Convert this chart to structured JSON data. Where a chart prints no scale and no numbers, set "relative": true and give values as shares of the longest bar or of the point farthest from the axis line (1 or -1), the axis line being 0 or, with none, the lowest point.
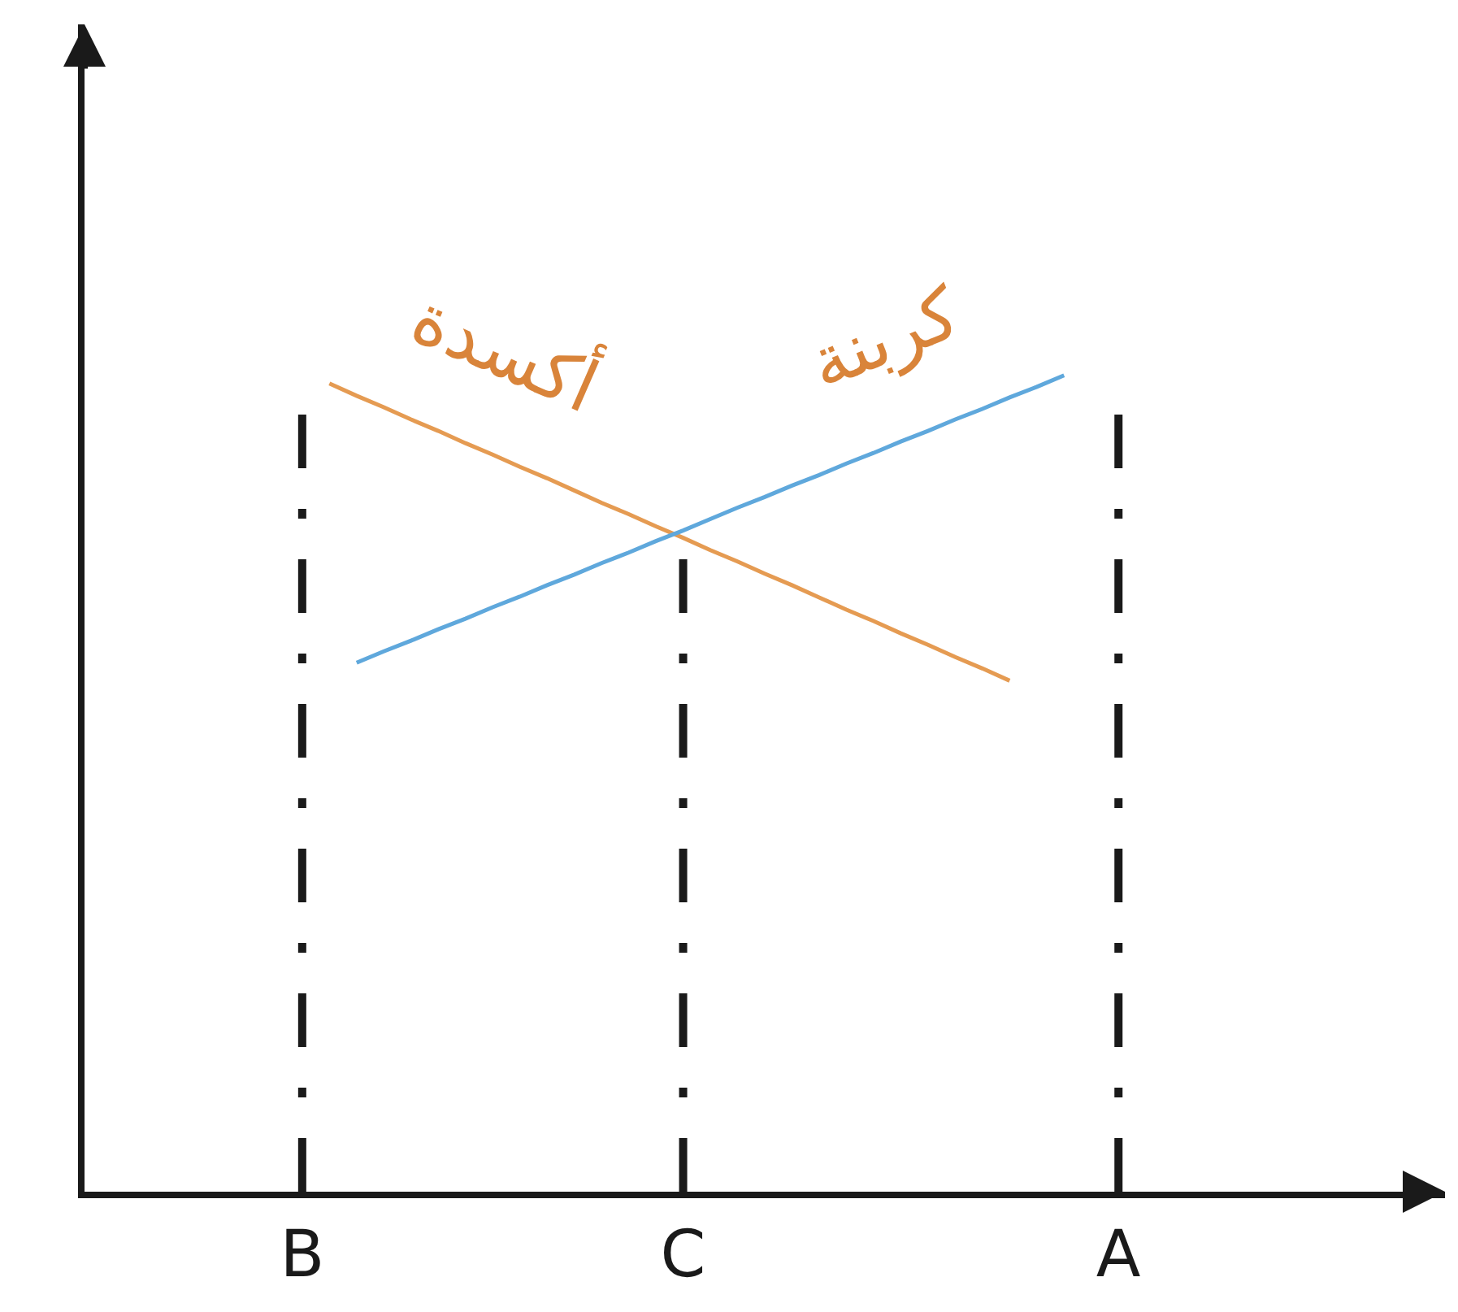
{
  "chart_data": {
    "type": "line",
    "relative": true,
    "tick_labels": "x",
    "line_style": "solid",
    "categories": [
      null,
      null,
      null,
      null,
      null,
      null,
      null,
      null,
      "B",
      null,
      null,
      null,
      null,
      null,
      null,
      null,
      null,
      null,
      null,
      null,
      null,
      null,
      "C",
      null,
      null,
      null,
      null,
      null,
      null,
      null,
      null,
      null,
      null,
      null,
      null,
      null,
      null,
      null,
      "A",
      null,
      null,
      null,
      null,
      null,
      null,
      null,
      null,
      null,
      null,
      null,
      null
    ],
    "series": [
      {
        "name": "أكسدة",
        "color": "#e59b52",
        "values": [
          null,
          null,
          null,
          null,
          null,
          null,
          null,
          null,
          null,
          0.99,
          0.975,
          0.961,
          0.946,
          0.932,
          0.917,
          0.903,
          0.888,
          0.874,
          0.859,
          0.844,
          0.83,
          0.815,
          0.801,
          0.786,
          0.772,
          0.757,
          0.743,
          0.728,
          0.713,
          0.699,
          0.684,
          0.67,
          0.655,
          0.641,
          0.626,
          null,
          null,
          null,
          null,
          null,
          null,
          null,
          null,
          null,
          null,
          null,
          null,
          null,
          null,
          null,
          null
        ]
      },
      {
        "name": "كربنة",
        "color": "#5fa8dc",
        "values": [
          null,
          null,
          null,
          null,
          null,
          null,
          null,
          null,
          null,
          null,
          0.648,
          0.662,
          0.675,
          0.689,
          0.702,
          0.716,
          0.729,
          0.743,
          0.756,
          0.77,
          0.783,
          0.797,
          0.81,
          0.824,
          0.838,
          0.851,
          0.865,
          0.878,
          0.892,
          0.905,
          0.919,
          0.932,
          0.946,
          0.959,
          0.973,
          0.986,
          1.0,
          null,
          null,
          null,
          null,
          null,
          null,
          null,
          null,
          null,
          null,
          null,
          null,
          null,
          null
        ]
      }
    ],
    "ref_lines": [
      {
        "axis": "x",
        "value": "B",
        "color": "#1a1a1a",
        "line_style": "dashed"
      },
      {
        "axis": "x",
        "value": "C",
        "color": "#1a1a1a",
        "line_style": "dashed"
      },
      {
        "axis": "x",
        "value": "A",
        "color": "#1a1a1a",
        "line_style": "dashed"
      }
    ]
  }
}
